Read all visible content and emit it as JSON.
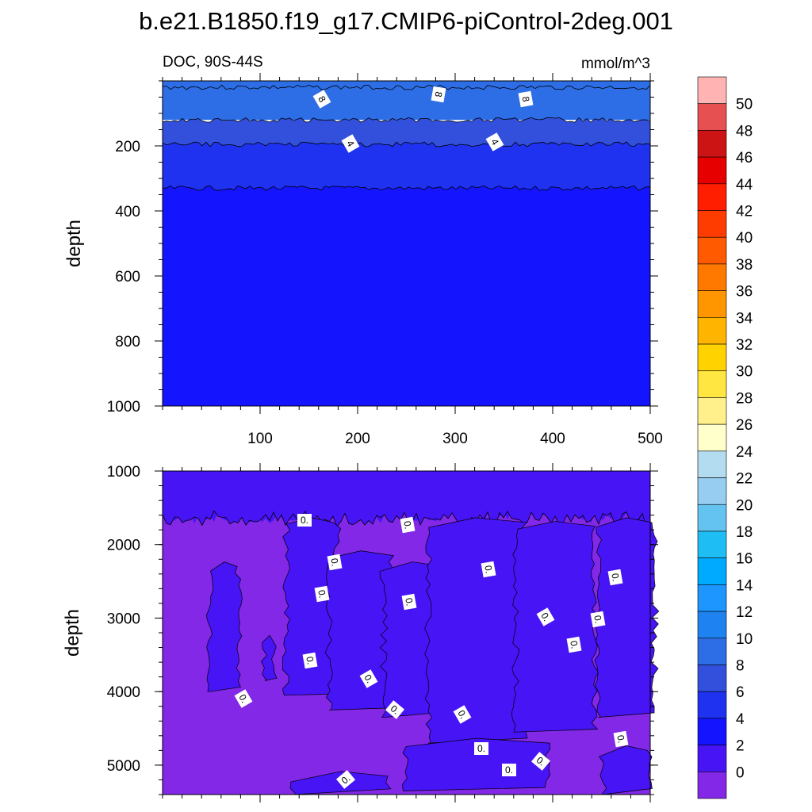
{
  "chart_data": {
    "type": "contour",
    "title": "b.e21.B1850.f19_g17.CMIP6-piControl-2deg.001",
    "variable": "DOC",
    "region": "DOC, 90S-44S",
    "units": "mmol/m^3",
    "ylabel": "depth",
    "xlim": [
      0,
      500
    ],
    "xticks": [
      "100",
      "200",
      "300",
      "400",
      "500"
    ],
    "panels": [
      {
        "name": "upper",
        "depth_range": [
          0,
          1000
        ],
        "yticks": [
          "200",
          "400",
          "600",
          "800",
          "1000"
        ],
        "contour_labels": [
          "8",
          "8",
          "8",
          "4",
          "4"
        ],
        "bands": [
          {
            "value": 8,
            "depth_from": 0,
            "depth_to": 120
          },
          {
            "value": 6,
            "depth_from": 120,
            "depth_to": 195
          },
          {
            "value": 4,
            "depth_from": 195,
            "depth_to": 330
          },
          {
            "value": 2,
            "depth_from": 330,
            "depth_to": 1000
          }
        ]
      },
      {
        "name": "lower",
        "depth_range": [
          1000,
          5400
        ],
        "yticks": [
          "1000",
          "2000",
          "3000",
          "4000",
          "5000"
        ],
        "contour_label_text": "0.",
        "note": "DOC near 0-2 mmol/m^3 in the deep ocean, alternating between the 0-2 and below-0 color classes"
      }
    ],
    "colorbar": {
      "labels": [
        "50",
        "48",
        "46",
        "44",
        "42",
        "40",
        "38",
        "36",
        "34",
        "32",
        "30",
        "28",
        "26",
        "24",
        "22",
        "20",
        "18",
        "16",
        "14",
        "12",
        "10",
        "8",
        "6",
        "4",
        "2",
        "0"
      ],
      "colors": [
        "#ffb3b3",
        "#e65050",
        "#cc1414",
        "#e60000",
        "#ff1e00",
        "#ff3c00",
        "#ff5a00",
        "#ff7800",
        "#ff9600",
        "#ffb400",
        "#ffd200",
        "#ffe640",
        "#fff08c",
        "#ffffcc",
        "#b4dcf0",
        "#96cdf0",
        "#64c3f0",
        "#1ebef5",
        "#00aaff",
        "#1e96ff",
        "#1e82f0",
        "#2d6ee6",
        "#3250dc",
        "#1e32f0",
        "#1414ff",
        "#4614f5",
        "#8228e6"
      ]
    }
  }
}
